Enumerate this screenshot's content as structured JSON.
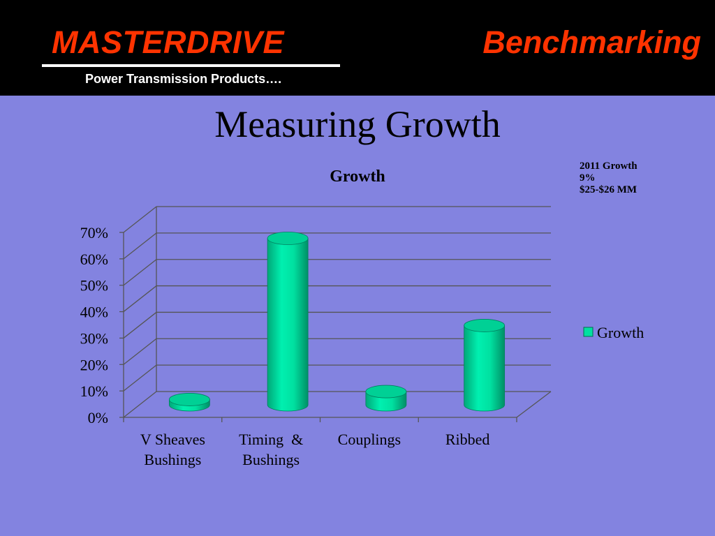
{
  "header": {
    "brand": "MASTERDRIVE",
    "tagline": "Power Transmission Products….",
    "section": "Benchmarking"
  },
  "slide_title": "Measuring Growth",
  "note": {
    "lines": [
      "2011 Growth",
      "9%",
      "$25-$26 MM"
    ]
  },
  "colors": {
    "background": "#8383e0",
    "header_bg": "#000000",
    "accent_red": "#ff3300",
    "bar_green": "#00e0a0"
  },
  "chart_data": {
    "type": "bar",
    "title": "Growth",
    "categories": [
      "V Sheaves\nBushings",
      "Timing  &\nBushings",
      "Couplings",
      "Ribbed"
    ],
    "series": [
      {
        "name": "Growth",
        "values": [
          0.02,
          0.63,
          0.05,
          0.3
        ]
      }
    ],
    "ylim": [
      0,
      0.7
    ],
    "yticks": [
      0,
      0.1,
      0.2,
      0.3,
      0.4,
      0.5,
      0.6,
      0.7
    ],
    "ytick_labels": [
      "0%",
      "10%",
      "20%",
      "30%",
      "40%",
      "50%",
      "60%",
      "70%"
    ],
    "grid": true,
    "legend": "right",
    "style": "3d-cylinder"
  }
}
